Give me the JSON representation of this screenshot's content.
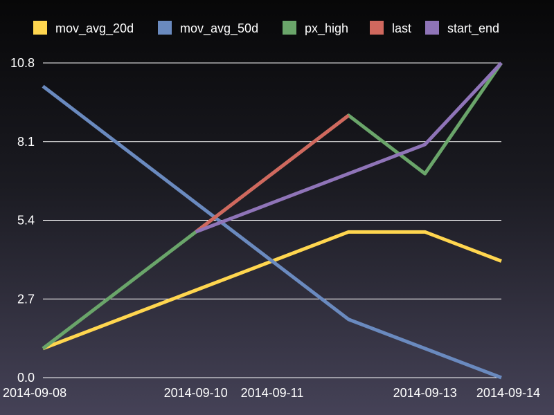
{
  "chart_data": {
    "type": "line",
    "title": "",
    "xlabel": "",
    "ylabel": "",
    "ylim": [
      0,
      10.8
    ],
    "grid": "horizontal",
    "legend": "top",
    "x": [
      "2014-09-08",
      "2014-09-09",
      "2014-09-10",
      "2014-09-11",
      "2014-09-12",
      "2014-09-13",
      "2014-09-14"
    ],
    "x_ticks": [
      "2014-09-08",
      "2014-09-10",
      "2014-09-11",
      "2014-09-13",
      "2014-09-14"
    ],
    "y_ticks": [
      "0.0",
      "2.7",
      "5.4",
      "8.1",
      "10.8"
    ],
    "series": [
      {
        "name": "mov_avg_20d",
        "color": "#ffd64f",
        "values": [
          1.0,
          2.0,
          3.0,
          4.0,
          5.0,
          5.0,
          4.0
        ]
      },
      {
        "name": "mov_avg_50d",
        "color": "#6a8abf",
        "values": [
          10.0,
          8.0,
          6.0,
          4.0,
          2.0,
          1.0,
          0.0
        ]
      },
      {
        "name": "px_high",
        "color": "#6aa56a",
        "values": [
          1.0,
          3.0,
          5.0,
          7.0,
          9.0,
          7.0,
          11.0
        ]
      },
      {
        "name": "last",
        "color": "#d0685e",
        "values": [
          null,
          null,
          5.0,
          7.0,
          9.0,
          null,
          null
        ]
      },
      {
        "name": "start_end",
        "color": "#8f74b8",
        "values": [
          null,
          null,
          5.0,
          6.0,
          7.0,
          8.0,
          11.0
        ]
      }
    ]
  }
}
